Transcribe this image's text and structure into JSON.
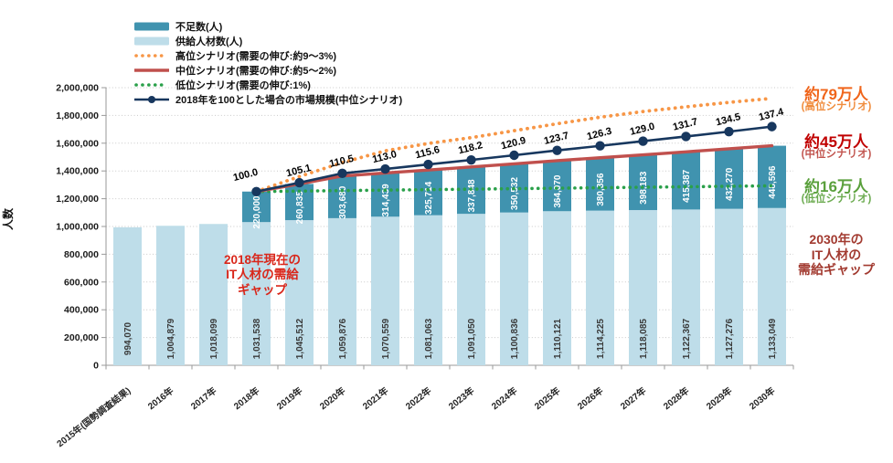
{
  "chart_data": {
    "type": "bar",
    "subtype": "stacked-bar-with-lines",
    "title": "",
    "ylabel": "人数",
    "ylim": [
      0,
      2000000
    ],
    "ytick_step": 200000,
    "ytick_labels": [
      "0",
      "200,000",
      "400,000",
      "600,000",
      "800,000",
      "1,000,000",
      "1,200,000",
      "1,400,000",
      "1,600,000",
      "1,800,000",
      "2,000,000"
    ],
    "grid": "horizontal-dotted",
    "legend_position": "top-left",
    "scenario_start_index": 3,
    "categories": [
      "2015年(国勢調査結果)",
      "2016年",
      "2017年",
      "2018年",
      "2019年",
      "2020年",
      "2021年",
      "2022年",
      "2023年",
      "2024年",
      "2025年",
      "2026年",
      "2027年",
      "2028年",
      "2029年",
      "2030年"
    ],
    "series": [
      {
        "key": "shortage",
        "name": "不足数(人)",
        "type": "bar-stack-top",
        "color": "#4093af",
        "values": [
          220000,
          260835,
          303680,
          314439,
          325714,
          337848,
          350532,
          364070,
          380856,
          398183,
          415387,
          432270,
          448596
        ]
      },
      {
        "key": "supply",
        "name": "供給人材数(人)",
        "type": "bar",
        "color": "#bedde9",
        "values": [
          994070,
          1004879,
          1018099,
          1031538,
          1045512,
          1059876,
          1070559,
          1081063,
          1091050,
          1100836,
          1110121,
          1114225,
          1118085,
          1122367,
          1127276,
          1133049
        ]
      },
      {
        "key": "high",
        "name": "高位シナリオ(需要の伸び:約9〜3%)",
        "type": "line-dotted",
        "color": "#f79646",
        "values_estimated": true,
        "values": [
          1251538,
          1360000,
          1460000,
          1545000,
          1598000,
          1640000,
          1690000,
          1740000,
          1787000,
          1828000,
          1862000,
          1894000,
          1923000
        ]
      },
      {
        "key": "mid",
        "name": "中位シナリオ(需要の伸び:約5〜2%)",
        "type": "line-solid",
        "color": "#c0504d",
        "values": [
          1251538,
          1306347,
          1363556,
          1384998,
          1406777,
          1428898,
          1451368,
          1474191,
          1495081,
          1516268,
          1537754,
          1559546,
          1581645
        ]
      },
      {
        "key": "low",
        "name": "低位シナリオ(需要の伸び:1%)",
        "type": "line-dotted",
        "color": "#2aa04a",
        "values_estimated": true,
        "values": [
          1251538,
          1255000,
          1258500,
          1262000,
          1265400,
          1268800,
          1272300,
          1275800,
          1279200,
          1282700,
          1286100,
          1289600,
          1293000
        ]
      },
      {
        "key": "index",
        "name": "2018年を100とした場合の市場規模(中位シナリオ)",
        "type": "line-marker",
        "color": "#17375e",
        "index_labels": [
          100.0,
          105.1,
          110.5,
          113.0,
          115.6,
          118.2,
          120.9,
          123.7,
          126.3,
          129.0,
          131.7,
          134.5,
          137.4
        ],
        "values": [
          1251538,
          1315366,
          1382949,
          1414238,
          1446778,
          1479318,
          1513109,
          1548152,
          1580692,
          1614484,
          1648275,
          1683318,
          1719613
        ]
      }
    ]
  },
  "annotations": {
    "gap_2018": {
      "text": "2018年現在の\nIT人材の需給\nギャップ",
      "color": "#d9261a"
    },
    "gap_2030": {
      "text": "2030年の\nIT人材の\n需給ギャップ",
      "color": "#a23a30"
    },
    "high": {
      "value": "約79万人",
      "label": "(高位シナリオ)",
      "color": "#f0651b",
      "label_color": "#f08c3c"
    },
    "mid": {
      "value": "約45万人",
      "label": "(中位シナリオ)",
      "color": "#c00000",
      "label_color": "#c2554f"
    },
    "low": {
      "value": "約16万人",
      "label": "(低位シナリオ)",
      "color": "#5aa03c",
      "label_color": "#6cab50"
    }
  }
}
